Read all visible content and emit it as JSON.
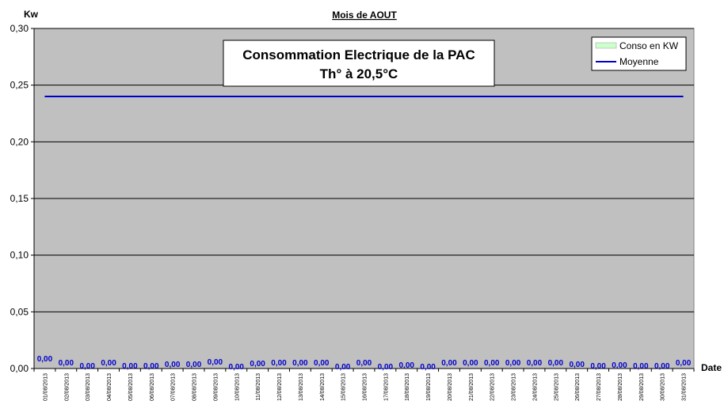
{
  "chart_data": {
    "type": "bar",
    "title": "Mois  de  AOUT",
    "ylabel": "Kw",
    "xlabel": "Date",
    "ylim": [
      0,
      0.3
    ],
    "yticks": [
      "0,00",
      "0,05",
      "0,10",
      "0,15",
      "0,20",
      "0,25",
      "0,30"
    ],
    "ytick_values": [
      0,
      0.05,
      0.1,
      0.15,
      0.2,
      0.25,
      0.3
    ],
    "grid": true,
    "legend_position": "top-right",
    "colors": {
      "plot_background": "#c0c0c0",
      "conso": "#ccffcc",
      "moyenne": "#0000cc",
      "data_labels": "#0000cc"
    },
    "annotation": [
      "Consommation Electrique de la PAC",
      "Th° à  20,5°C"
    ],
    "categories": [
      "01/08/2013",
      "02/08/2013",
      "03/08/2013",
      "04/08/2013",
      "05/08/2013",
      "06/08/2013",
      "07/08/2013",
      "08/08/2013",
      "09/08/2013",
      "10/08/2013",
      "11/08/2013",
      "12/08/2013",
      "13/08/2013",
      "14/08/2013",
      "15/08/2013",
      "16/08/2013",
      "17/08/2013",
      "18/08/2013",
      "19/08/2013",
      "20/08/2013",
      "21/08/2013",
      "22/08/2013",
      "23/08/2013",
      "24/08/2013",
      "25/08/2013",
      "26/08/2013",
      "27/08/2013",
      "28/08/2013",
      "29/08/2013",
      "30/08/2013",
      "31/08/2013"
    ],
    "series": [
      {
        "name": "Conso en KW",
        "type": "bar",
        "values": [
          0,
          0,
          0,
          0,
          0,
          0,
          0,
          0,
          0,
          0,
          0,
          0,
          0,
          0,
          0,
          0,
          0,
          0,
          0,
          0,
          0,
          0,
          0,
          0,
          0,
          0,
          0,
          0,
          0,
          0,
          0
        ],
        "labels": [
          "0,00",
          "0,00",
          "0,00",
          "0,00",
          "0,00",
          "0,00",
          "0,00",
          "0,00",
          "0,00",
          "0,00",
          "0,00",
          "0,00",
          "0,00",
          "0,00",
          "0,00",
          "0,00",
          "0,00",
          "0,00",
          "0,00",
          "0,00",
          "0,00",
          "0,00",
          "0,00",
          "0,00",
          "0,00",
          "0,00",
          "0,00",
          "0,00",
          "0,00",
          "0,00",
          "0,00"
        ]
      },
      {
        "name": "Moyenne",
        "type": "line",
        "value": 0.24
      }
    ]
  }
}
